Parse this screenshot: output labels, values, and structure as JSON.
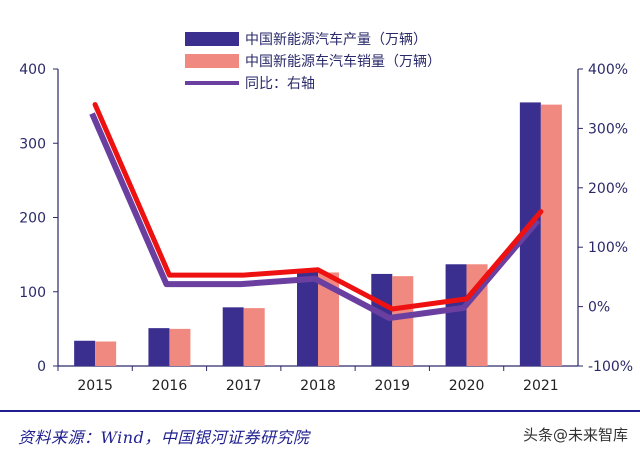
{
  "chart_data": {
    "type": "bar",
    "categories": [
      "2015",
      "2016",
      "2017",
      "2018",
      "2019",
      "2020",
      "2021"
    ],
    "series": [
      {
        "name": "中国新能源汽车产量（万辆）",
        "kind": "bar",
        "axis": "left",
        "color": "#3a2f8f",
        "values": [
          34,
          51,
          79,
          127,
          124,
          137,
          355
        ]
      },
      {
        "name": "中国新能源车汽车销量（万辆）",
        "kind": "bar",
        "axis": "left",
        "color": "#f08a80",
        "values": [
          33,
          50,
          78,
          126,
          121,
          137,
          352
        ]
      },
      {
        "name": "同比：右轴",
        "kind": "line",
        "axis": "right",
        "colors": [
          "#6a3fa0",
          "#ee1111"
        ],
        "values": [
          340,
          53,
          53,
          62,
          -4,
          13,
          160
        ]
      }
    ],
    "left_axis": {
      "min": 0,
      "max": 400,
      "ticks": [
        "0",
        "100",
        "200",
        "300",
        "400"
      ]
    },
    "right_axis": {
      "min": -100,
      "max": 400,
      "ticks": [
        "-100%",
        "0%",
        "100%",
        "200%",
        "300%",
        "400%"
      ]
    },
    "grid": false,
    "legend_position": "top-center"
  },
  "footer": {
    "source": "资料来源：Wind，中国银河证券研究院",
    "watermark": "头条@未来智库"
  }
}
